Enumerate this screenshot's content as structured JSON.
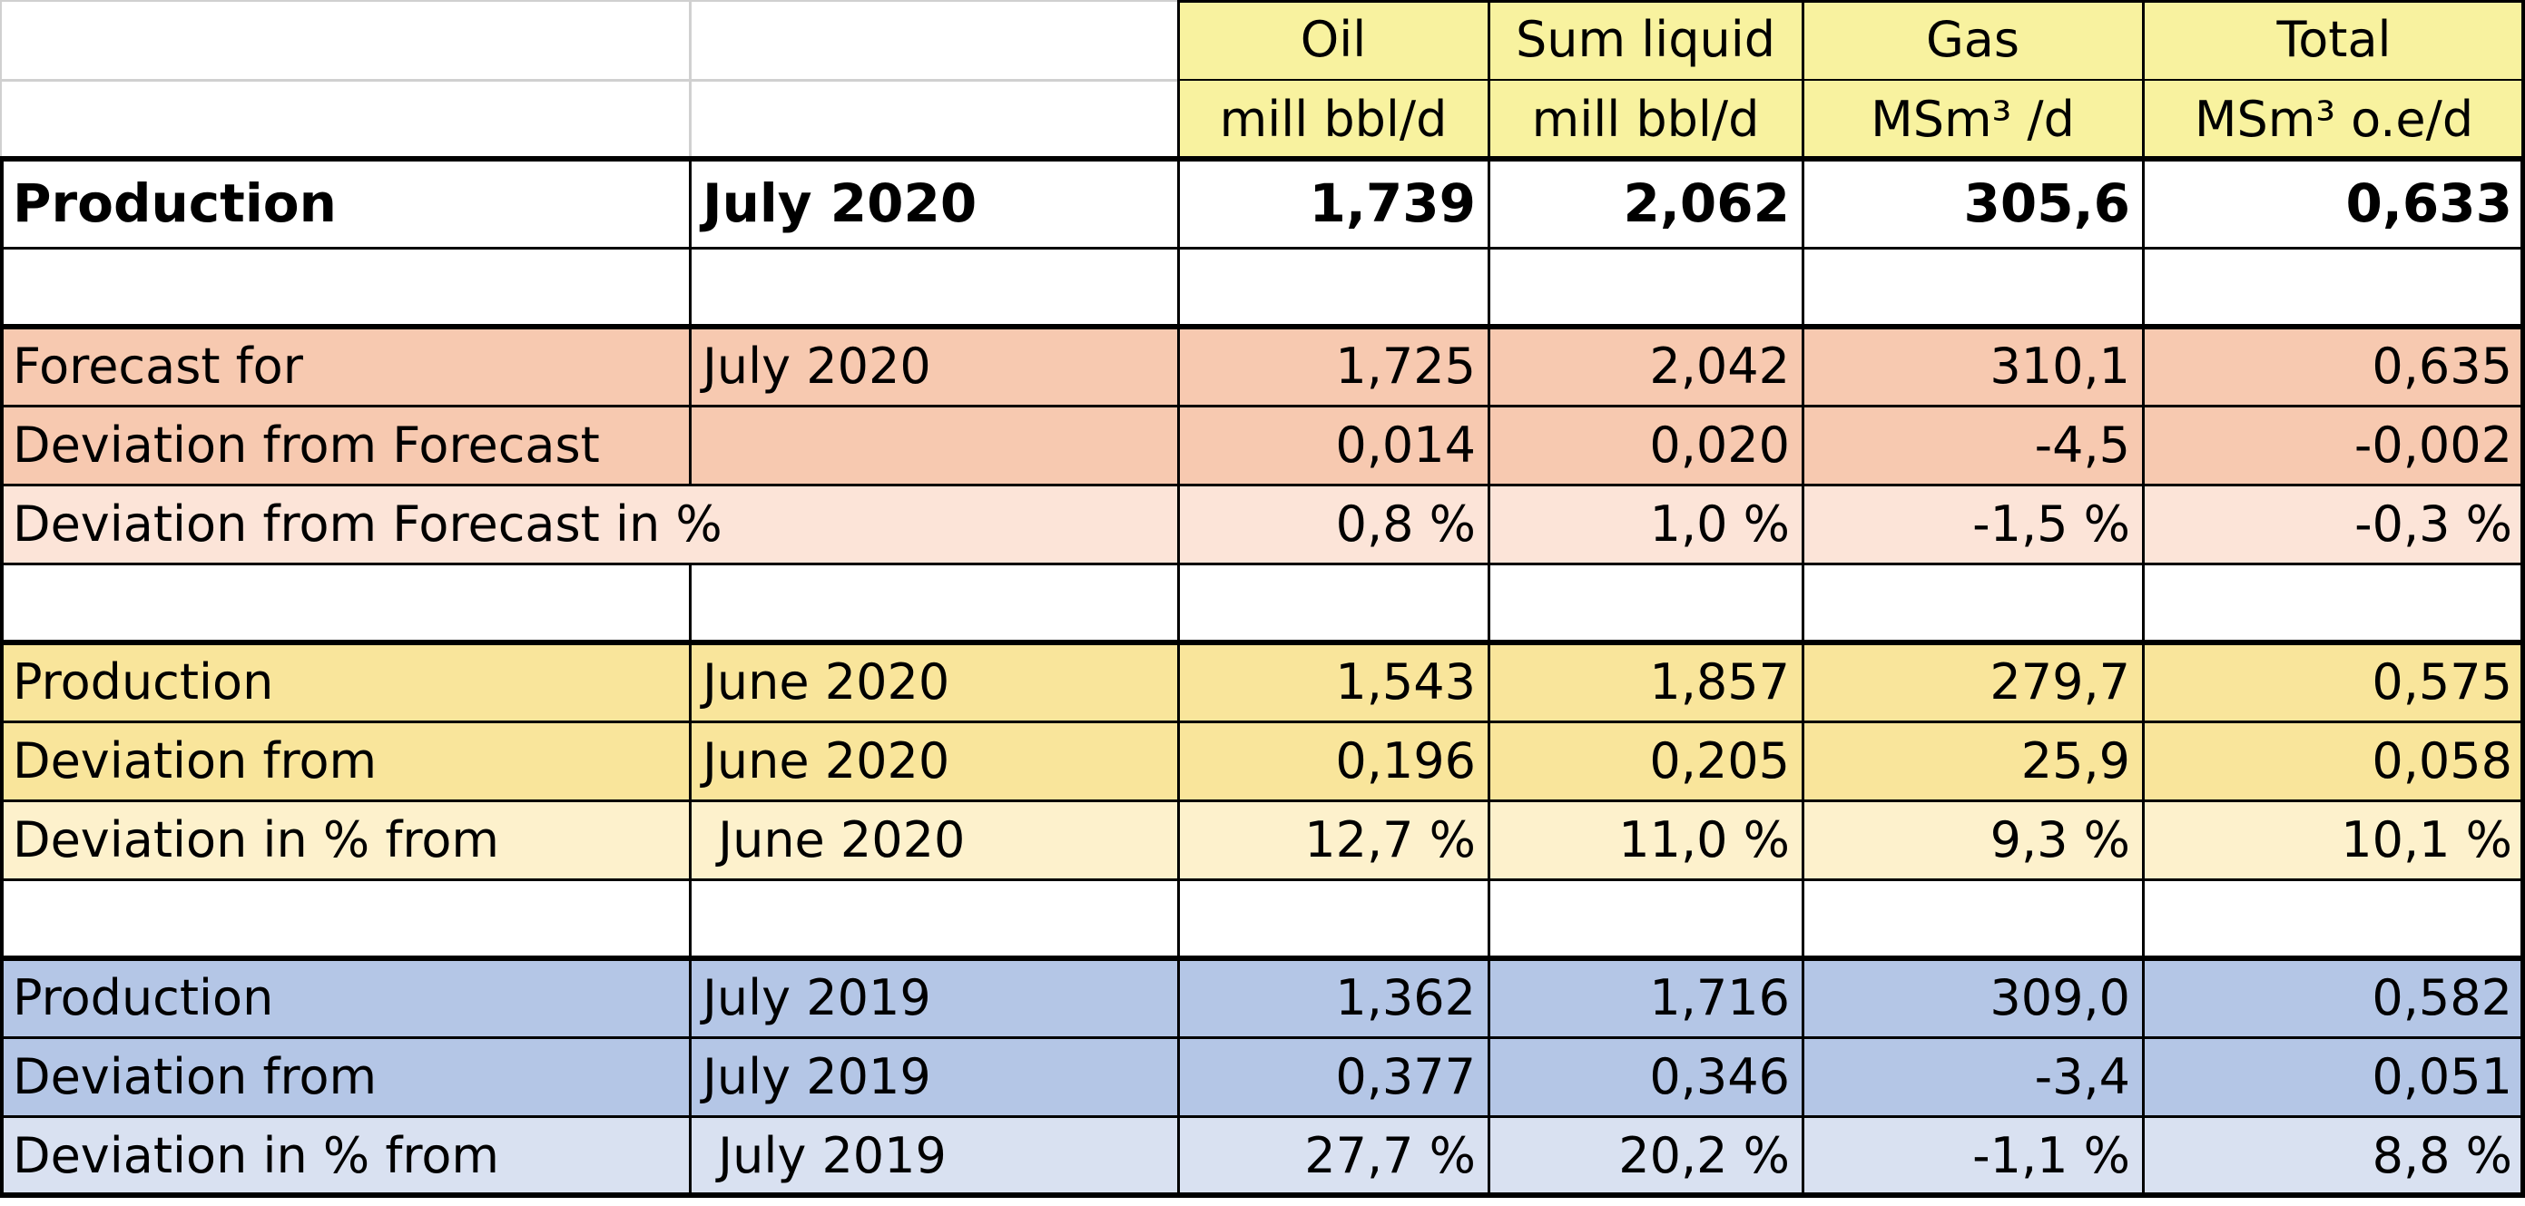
{
  "header": {
    "columns": [
      {
        "name": "Oil",
        "unit": "mill bbl/d"
      },
      {
        "name": "Sum liquid",
        "unit": "mill bbl/d"
      },
      {
        "name": "Gas",
        "unit": "MSm³ /d"
      },
      {
        "name": "Total",
        "unit": "MSm³ o.e/d"
      }
    ]
  },
  "colors": {
    "header_yellow": "#f8f29f",
    "salmon": "#f7c9b0",
    "salmon_light": "#fce4d8",
    "yellow": "#f9e59b",
    "yellow_light": "#fdf1cc",
    "blue": "#b4c6e6",
    "blue_light": "#d9e1f1",
    "grid_light": "#d0d0d0",
    "grid_dark": "#000000"
  },
  "rows": [
    {
      "label": "Production",
      "period": "July 2020",
      "values": [
        "1,739",
        "2,062",
        "305,6",
        "0,633"
      ],
      "bold": true
    },
    {
      "label": "",
      "period": "",
      "values": [
        "",
        "",
        "",
        ""
      ]
    },
    {
      "label": "Forecast for",
      "period": "July 2020",
      "values": [
        "1,725",
        "2,042",
        "310,1",
        "0,635"
      ]
    },
    {
      "label": "Deviation from Forecast",
      "period": "",
      "values": [
        "0,014",
        "0,020",
        "-4,5",
        "-0,002"
      ]
    },
    {
      "label": "Deviation from Forecast in %",
      "period": "",
      "values": [
        "0,8 %",
        "1,0 %",
        "-1,5 %",
        "-0,3 %"
      ]
    },
    {
      "label": "",
      "period": "",
      "values": [
        "",
        "",
        "",
        ""
      ]
    },
    {
      "label": "Production",
      "period": "June 2020",
      "values": [
        "1,543",
        "1,857",
        "279,7",
        "0,575"
      ]
    },
    {
      "label": "Deviation from",
      "period": "June 2020",
      "values": [
        "0,196",
        "0,205",
        "25,9",
        "0,058"
      ]
    },
    {
      "label": "Deviation  in % from",
      "period": " June 2020",
      "values": [
        "12,7 %",
        "11,0 %",
        "9,3 %",
        "10,1 %"
      ]
    },
    {
      "label": "",
      "period": "",
      "values": [
        "",
        "",
        "",
        ""
      ]
    },
    {
      "label": "Production",
      "period": "July 2019",
      "values": [
        "1,362",
        "1,716",
        "309,0",
        "0,582"
      ]
    },
    {
      "label": "Deviation from",
      "period": "July 2019",
      "values": [
        "0,377",
        "0,346",
        "-3,4",
        "0,051"
      ]
    },
    {
      "label": "Deviation  in % from",
      "period": " July 2019",
      "values": [
        "27,7 %",
        "20,2 %",
        "-1,1 %",
        "8,8 %"
      ]
    }
  ]
}
